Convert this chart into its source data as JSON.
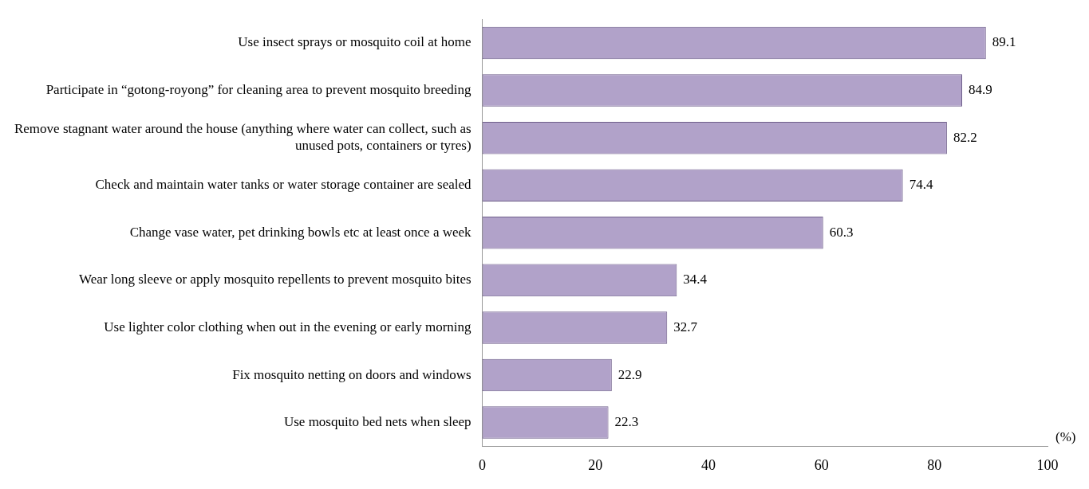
{
  "chart_data": {
    "type": "bar",
    "orientation": "horizontal",
    "xlabel": "(%)",
    "categories": [
      "Use insect sprays or mosquito coil at home",
      "Participate in “gotong-royong” for cleaning area to prevent mosquito breeding",
      "Remove stagnant water around the house (anything where water can collect, such as unused pots, containers or tyres)",
      "Check and maintain water tanks or water storage container are sealed",
      "Change vase water, pet drinking bowls etc at least once a week",
      "Wear long sleeve or apply mosquito repellents to prevent mosquito bites",
      "Use lighter color clothing when out in the evening or early morning",
      "Fix mosquito netting on doors and windows",
      "Use mosquito bed nets when sleep"
    ],
    "values": [
      89.1,
      84.9,
      82.2,
      74.4,
      60.3,
      34.4,
      32.7,
      22.9,
      22.3
    ],
    "color": "#b1a2c9",
    "xlim": [
      0,
      100
    ],
    "xticks": [
      0,
      20,
      40,
      60,
      80,
      100
    ],
    "data_labels": true,
    "grid": false,
    "legend": false
  }
}
